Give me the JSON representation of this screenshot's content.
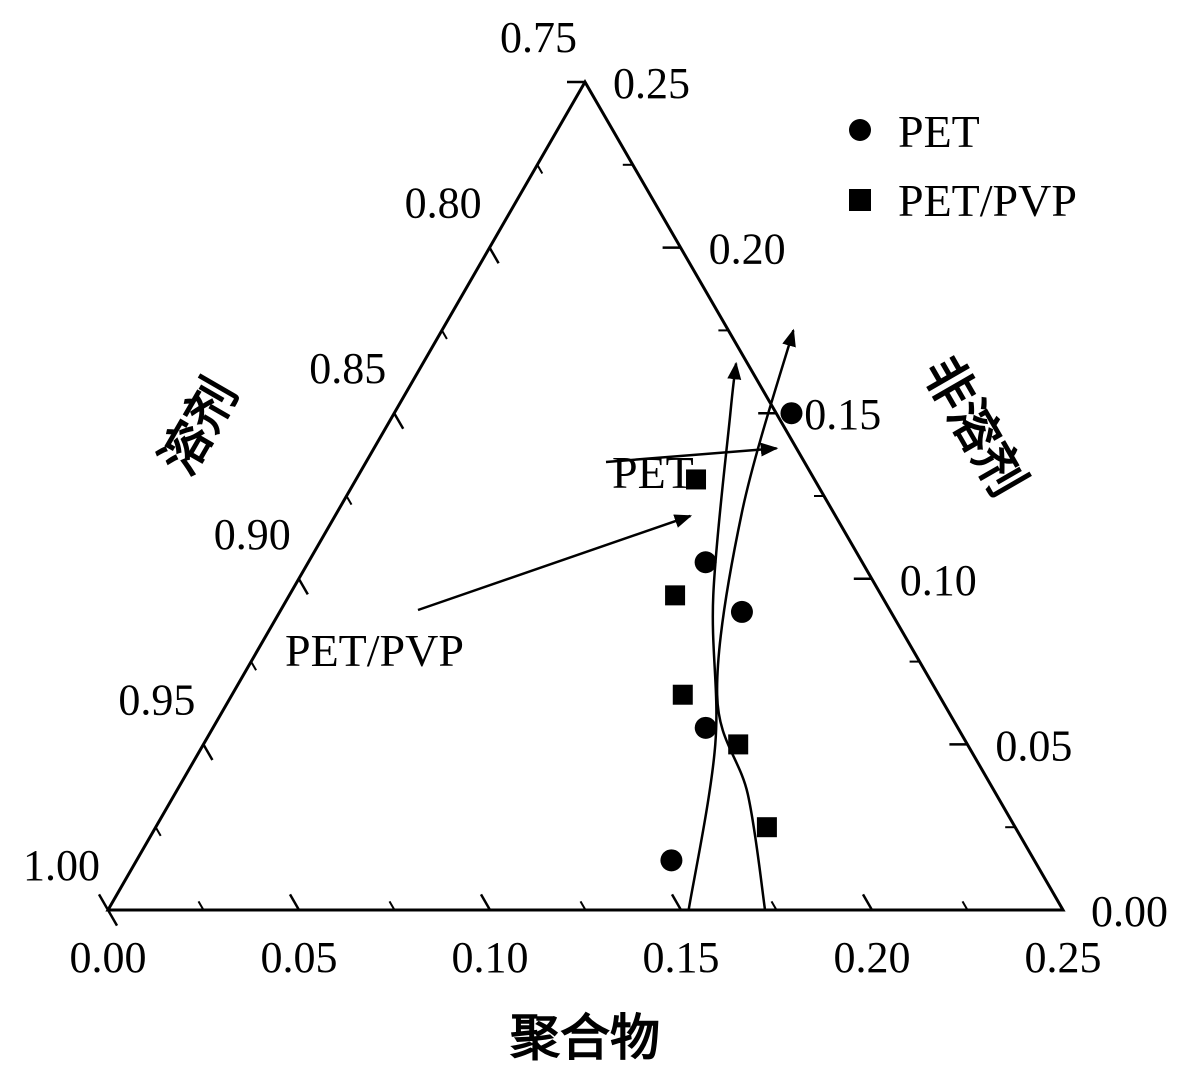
{
  "chart_data": {
    "type": "scatter",
    "subtype": "ternary",
    "axes": {
      "bottom": {
        "label": "聚合物",
        "ticks": [
          "0.00",
          "0.05",
          "0.10",
          "0.15",
          "0.20",
          "0.25"
        ],
        "range": [
          0,
          0.25
        ]
      },
      "left": {
        "label": "溶剂",
        "ticks": [
          "0.75",
          "0.80",
          "0.85",
          "0.90",
          "0.95",
          "1.00"
        ],
        "range": [
          0.75,
          1.0
        ]
      },
      "right": {
        "label": "非溶剂",
        "ticks": [
          "0.25",
          "0.20",
          "0.15",
          "0.10",
          "0.05",
          "0.00"
        ],
        "range": [
          0,
          0.25
        ]
      }
    },
    "legend": {
      "position": "top-right",
      "entries": [
        "PET",
        "PET/PVP"
      ]
    },
    "series": [
      {
        "name": "PET",
        "marker": "circle",
        "points": [
          {
            "polymer": 0.104,
            "nonsolvent": 0.15
          },
          {
            "polymer": 0.104,
            "nonsolvent": 0.105
          },
          {
            "polymer": 0.121,
            "nonsolvent": 0.09
          },
          {
            "polymer": 0.129,
            "nonsolvent": 0.055
          },
          {
            "polymer": 0.14,
            "nonsolvent": 0.015
          }
        ]
      },
      {
        "name": "PET/PVP",
        "marker": "square",
        "points": [
          {
            "polymer": 0.089,
            "nonsolvent": 0.13
          },
          {
            "polymer": 0.101,
            "nonsolvent": 0.095
          },
          {
            "polymer": 0.118,
            "nonsolvent": 0.065
          },
          {
            "polymer": 0.14,
            "nonsolvent": 0.05
          },
          {
            "polymer": 0.16,
            "nonsolvent": 0.025
          }
        ]
      }
    ],
    "curves": [
      {
        "name": "PET",
        "points": [
          {
            "polymer": 0.172,
            "nonsolvent": 0.0
          },
          {
            "polymer": 0.15,
            "nonsolvent": 0.035
          },
          {
            "polymer": 0.127,
            "nonsolvent": 0.065
          },
          {
            "polymer": 0.106,
            "nonsolvent": 0.12
          },
          {
            "polymer": 0.092,
            "nonsolvent": 0.175
          }
        ]
      },
      {
        "name": "PET/PVP",
        "points": [
          {
            "polymer": 0.152,
            "nonsolvent": 0.0
          },
          {
            "polymer": 0.134,
            "nonsolvent": 0.05
          },
          {
            "polymer": 0.111,
            "nonsolvent": 0.095
          },
          {
            "polymer": 0.088,
            "nonsolvent": 0.15
          },
          {
            "polymer": 0.082,
            "nonsolvent": 0.165
          }
        ]
      }
    ],
    "annotations": [
      {
        "text": "PET",
        "arrow_to": {
          "polymer": 0.103,
          "nonsolvent": 0.14
        }
      },
      {
        "text": "PET/PVP",
        "arrow_to": {
          "polymer": 0.091,
          "nonsolvent": 0.122
        }
      }
    ],
    "grid": false
  }
}
